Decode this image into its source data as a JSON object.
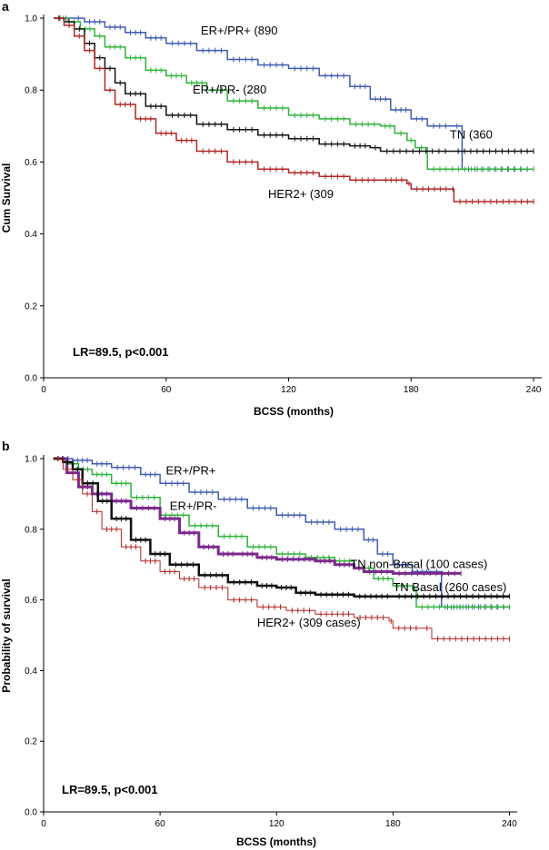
{
  "chart_data": [
    {
      "type": "line",
      "panel_label": "a",
      "xlabel": "BCSS (months)",
      "ylabel": "Cum Survival",
      "xlim": [
        0,
        244
      ],
      "ylim": [
        0,
        1.0
      ],
      "x_ticks": [
        0,
        60,
        120,
        180,
        240
      ],
      "y_ticks": [
        0.0,
        0.2,
        0.4,
        0.6,
        0.8,
        1.0
      ],
      "x_tick_labels": [
        "0",
        "60",
        "120",
        "180",
        "240"
      ],
      "y_tick_labels": [
        "0.0",
        "0.2",
        "0.4",
        "0.6",
        "0.8",
        "1.0"
      ],
      "annotation": "LR=89.5, p<0.001",
      "series": [
        {
          "name": "ER+/PR+ (890",
          "label_at": [
            77,
            0.955
          ],
          "color": "#3f5bb5",
          "width": 1.5,
          "points": [
            [
              5,
              1.0
            ],
            [
              14,
              1.0
            ],
            [
              20,
              0.99
            ],
            [
              30,
              0.975
            ],
            [
              40,
              0.96
            ],
            [
              50,
              0.945
            ],
            [
              60,
              0.93
            ],
            [
              75,
              0.91
            ],
            [
              90,
              0.885
            ],
            [
              105,
              0.87
            ],
            [
              120,
              0.86
            ],
            [
              135,
              0.84
            ],
            [
              150,
              0.81
            ],
            [
              160,
              0.775
            ],
            [
              170,
              0.745
            ],
            [
              180,
              0.72
            ],
            [
              188,
              0.7
            ],
            [
              200,
              0.7
            ],
            [
              205,
              0.7
            ],
            [
              205,
              0.58
            ],
            [
              240,
              0.58
            ]
          ]
        },
        {
          "name": "ER+/PR- (280",
          "label_at": [
            73,
            0.79
          ],
          "color": "#2db43a",
          "width": 1.5,
          "points": [
            [
              5,
              1.0
            ],
            [
              12,
              0.99
            ],
            [
              18,
              0.97
            ],
            [
              25,
              0.95
            ],
            [
              30,
              0.92
            ],
            [
              40,
              0.89
            ],
            [
              50,
              0.855
            ],
            [
              60,
              0.84
            ],
            [
              70,
              0.82
            ],
            [
              80,
              0.8
            ],
            [
              90,
              0.77
            ],
            [
              105,
              0.75
            ],
            [
              120,
              0.73
            ],
            [
              135,
              0.72
            ],
            [
              150,
              0.705
            ],
            [
              165,
              0.7
            ],
            [
              172,
              0.68
            ],
            [
              178,
              0.66
            ],
            [
              182,
              0.64
            ],
            [
              188,
              0.63
            ],
            [
              188,
              0.58
            ],
            [
              240,
              0.58
            ]
          ]
        },
        {
          "name": "TN (360",
          "label_at": [
            199,
            0.665
          ],
          "color": "#111111",
          "width": 1.5,
          "points": [
            [
              5,
              1.0
            ],
            [
              10,
              0.99
            ],
            [
              15,
              0.97
            ],
            [
              20,
              0.93
            ],
            [
              25,
              0.89
            ],
            [
              30,
              0.86
            ],
            [
              35,
              0.82
            ],
            [
              40,
              0.79
            ],
            [
              50,
              0.755
            ],
            [
              60,
              0.73
            ],
            [
              75,
              0.705
            ],
            [
              90,
              0.69
            ],
            [
              105,
              0.675
            ],
            [
              120,
              0.665
            ],
            [
              135,
              0.65
            ],
            [
              150,
              0.645
            ],
            [
              160,
              0.64
            ],
            [
              165,
              0.63
            ],
            [
              200,
              0.63
            ],
            [
              240,
              0.63
            ]
          ]
        },
        {
          "name": "HER2+ (309",
          "label_at": [
            110,
            0.5
          ],
          "color": "#b22525",
          "width": 1.5,
          "points": [
            [
              5,
              1.0
            ],
            [
              10,
              0.98
            ],
            [
              15,
              0.95
            ],
            [
              20,
              0.91
            ],
            [
              25,
              0.86
            ],
            [
              30,
              0.8
            ],
            [
              35,
              0.76
            ],
            [
              45,
              0.72
            ],
            [
              55,
              0.68
            ],
            [
              65,
              0.66
            ],
            [
              75,
              0.63
            ],
            [
              90,
              0.6
            ],
            [
              105,
              0.58
            ],
            [
              120,
              0.57
            ],
            [
              135,
              0.56
            ],
            [
              150,
              0.55
            ],
            [
              165,
              0.55
            ],
            [
              178,
              0.54
            ],
            [
              180,
              0.525
            ],
            [
              200,
              0.525
            ],
            [
              201,
              0.49
            ],
            [
              240,
              0.49
            ]
          ]
        }
      ]
    },
    {
      "type": "line",
      "panel_label": "b",
      "xlabel": "BCSS (months)",
      "ylabel": "Probability of survival",
      "xlim": [
        0,
        244
      ],
      "ylim": [
        0,
        1.0
      ],
      "x_ticks": [
        0,
        60,
        120,
        180,
        240
      ],
      "y_ticks": [
        0.0,
        0.2,
        0.4,
        0.6,
        0.8,
        1.0
      ],
      "x_tick_labels": [
        "0",
        "60",
        "120",
        "180",
        "240"
      ],
      "y_tick_labels": [
        "0.0",
        "0.2",
        "0.4",
        "0.6",
        "0.8",
        "1.0"
      ],
      "annotation": "LR=89.5, p<0.001",
      "series": [
        {
          "name": "ER+/PR+",
          "label_at": [
            63,
            0.955
          ],
          "color": "#3f5bb5",
          "width": 1.5,
          "points": [
            [
              5,
              1.0
            ],
            [
              15,
              0.995
            ],
            [
              25,
              0.985
            ],
            [
              35,
              0.975
            ],
            [
              50,
              0.955
            ],
            [
              60,
              0.93
            ],
            [
              75,
              0.905
            ],
            [
              90,
              0.885
            ],
            [
              105,
              0.86
            ],
            [
              120,
              0.84
            ],
            [
              135,
              0.82
            ],
            [
              150,
              0.8
            ],
            [
              165,
              0.77
            ],
            [
              172,
              0.73
            ],
            [
              180,
              0.7
            ],
            [
              190,
              0.68
            ],
            [
              200,
              0.68
            ],
            [
              205,
              0.68
            ],
            [
              205,
              0.58
            ],
            [
              240,
              0.58
            ]
          ]
        },
        {
          "name": "ER+/PR-",
          "label_at": [
            65,
            0.855
          ],
          "color": "#2db43a",
          "width": 1.5,
          "points": [
            [
              5,
              1.0
            ],
            [
              12,
              0.985
            ],
            [
              18,
              0.97
            ],
            [
              25,
              0.955
            ],
            [
              35,
              0.93
            ],
            [
              45,
              0.89
            ],
            [
              60,
              0.84
            ],
            [
              75,
              0.81
            ],
            [
              90,
              0.78
            ],
            [
              105,
              0.75
            ],
            [
              120,
              0.73
            ],
            [
              135,
              0.72
            ],
            [
              150,
              0.71
            ],
            [
              160,
              0.69
            ],
            [
              170,
              0.66
            ],
            [
              180,
              0.64
            ],
            [
              190,
              0.63
            ],
            [
              192,
              0.58
            ],
            [
              240,
              0.58
            ]
          ]
        },
        {
          "name": "TN non-Basal (100 cases)",
          "label_at": [
            158,
            0.69
          ],
          "color": "#7b2a8e",
          "width": 3,
          "points": [
            [
              5,
              1.0
            ],
            [
              12,
              0.96
            ],
            [
              18,
              0.92
            ],
            [
              25,
              0.9
            ],
            [
              35,
              0.88
            ],
            [
              45,
              0.86
            ],
            [
              60,
              0.83
            ],
            [
              70,
              0.79
            ],
            [
              80,
              0.75
            ],
            [
              90,
              0.73
            ],
            [
              100,
              0.73
            ],
            [
              110,
              0.72
            ],
            [
              120,
              0.715
            ],
            [
              140,
              0.71
            ],
            [
              150,
              0.7
            ],
            [
              160,
              0.69
            ],
            [
              165,
              0.68
            ],
            [
              180,
              0.675
            ],
            [
              215,
              0.675
            ]
          ]
        },
        {
          "name": "TN Basal (260 cases)",
          "label_at": [
            180,
            0.625
          ],
          "color": "#111111",
          "width": 2.5,
          "points": [
            [
              5,
              1.0
            ],
            [
              10,
              0.99
            ],
            [
              15,
              0.97
            ],
            [
              20,
              0.93
            ],
            [
              28,
              0.88
            ],
            [
              35,
              0.83
            ],
            [
              45,
              0.77
            ],
            [
              55,
              0.73
            ],
            [
              65,
              0.7
            ],
            [
              80,
              0.67
            ],
            [
              95,
              0.65
            ],
            [
              110,
              0.64
            ],
            [
              120,
              0.635
            ],
            [
              130,
              0.62
            ],
            [
              140,
              0.615
            ],
            [
              160,
              0.61
            ],
            [
              180,
              0.61
            ],
            [
              240,
              0.61
            ]
          ]
        },
        {
          "name": "HER2+ (309 cases)",
          "label_at": [
            110,
            0.525
          ],
          "color": "#b22525",
          "width": 1,
          "points": [
            [
              5,
              1.0
            ],
            [
              10,
              0.97
            ],
            [
              15,
              0.94
            ],
            [
              20,
              0.9
            ],
            [
              25,
              0.85
            ],
            [
              30,
              0.8
            ],
            [
              40,
              0.75
            ],
            [
              50,
              0.71
            ],
            [
              60,
              0.68
            ],
            [
              70,
              0.66
            ],
            [
              80,
              0.635
            ],
            [
              95,
              0.6
            ],
            [
              110,
              0.58
            ],
            [
              125,
              0.57
            ],
            [
              140,
              0.56
            ],
            [
              160,
              0.55
            ],
            [
              178,
              0.54
            ],
            [
              180,
              0.52
            ],
            [
              195,
              0.52
            ],
            [
              200,
              0.49
            ],
            [
              240,
              0.49
            ]
          ]
        }
      ]
    }
  ]
}
